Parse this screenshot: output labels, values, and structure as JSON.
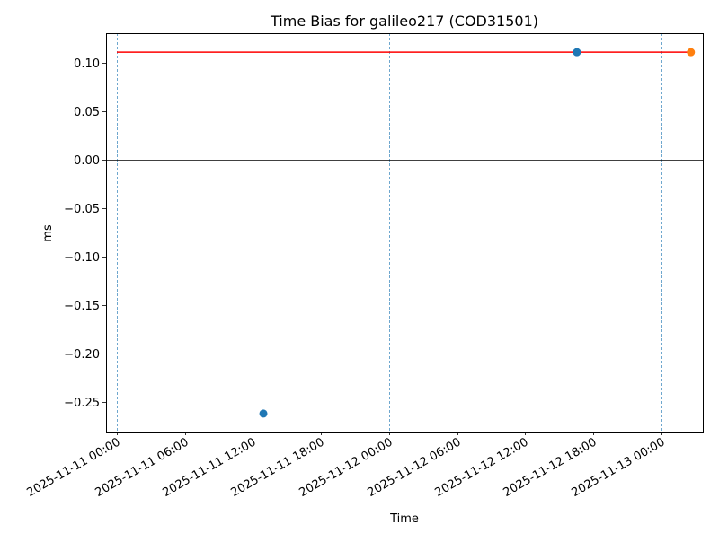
{
  "chart_data": {
    "type": "scatter",
    "title": "Time Bias for galileo217 (COD31501)",
    "xlabel": "Time",
    "ylabel": "ms",
    "xlim": [
      "2025-11-10 23:03",
      "2025-11-13 03:39"
    ],
    "ylim": [
      -0.2806,
      0.1306
    ],
    "grid": false,
    "x_ticks": [
      "2025-11-11 00:00",
      "2025-11-11 06:00",
      "2025-11-11 12:00",
      "2025-11-11 18:00",
      "2025-11-12 00:00",
      "2025-11-12 06:00",
      "2025-11-12 12:00",
      "2025-11-12 18:00",
      "2025-11-13 00:00"
    ],
    "y_ticks": [
      0.1,
      0.05,
      0.0,
      -0.05,
      -0.1,
      -0.15,
      -0.2,
      -0.25
    ],
    "y_tick_labels": [
      "0.10",
      "0.05",
      "0.00",
      "−0.05",
      "−0.10",
      "−0.15",
      "−0.20",
      "−0.25"
    ],
    "series": [
      {
        "color": "#1f77b4",
        "points": [
          {
            "x": "2025-11-11 12:55",
            "y": -0.262
          },
          {
            "x": "2025-11-12 16:33",
            "y": 0.111
          }
        ]
      },
      {
        "color": "#ff7f0e",
        "points": [
          {
            "x": "2025-11-13 02:36",
            "y": 0.111
          }
        ]
      }
    ],
    "hline_red": {
      "y": 0.111,
      "x_start": "2025-11-11 00:00",
      "x_end": "2025-11-13 02:36",
      "color": "#ff0000"
    },
    "zero_line": {
      "y": 0.0,
      "color": "#000000"
    },
    "vlines": {
      "x": [
        "2025-11-11 00:00",
        "2025-11-12 00:00",
        "2025-11-13 00:00"
      ],
      "style": "dashed",
      "color": "#1f77b4"
    }
  }
}
